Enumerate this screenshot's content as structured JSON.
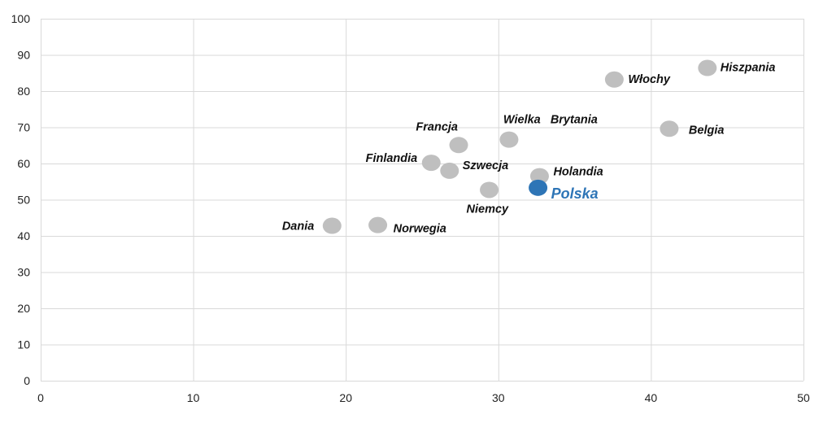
{
  "chart_data": {
    "type": "scatter",
    "title": "",
    "xlabel": "",
    "ylabel": "",
    "xlim": [
      0,
      50
    ],
    "ylim": [
      0,
      100
    ],
    "x_ticks": [
      0,
      10,
      20,
      30,
      40,
      50
    ],
    "y_ticks": [
      0,
      10,
      20,
      30,
      40,
      50,
      60,
      70,
      80,
      90,
      100
    ],
    "grid": true,
    "legend": "none",
    "colors": {
      "default": "#bfbfbf",
      "highlight": "#2e75b6",
      "highlight_label": "#2e75b6"
    },
    "points": [
      {
        "label": "Dania",
        "x": 19.1,
        "y": 42.8,
        "highlight": false
      },
      {
        "label": "Norwegia",
        "x": 22.1,
        "y": 43.0,
        "highlight": false
      },
      {
        "label": "Finlandia",
        "x": 25.6,
        "y": 60.2,
        "highlight": false
      },
      {
        "label": "Szwecja",
        "x": 26.8,
        "y": 58.0,
        "highlight": false
      },
      {
        "label": "Francja",
        "x": 27.4,
        "y": 65.1,
        "highlight": false
      },
      {
        "label": "Niemcy",
        "x": 29.4,
        "y": 52.7,
        "highlight": false
      },
      {
        "label": "Wielka   Brytania",
        "x": 30.7,
        "y": 66.6,
        "highlight": false
      },
      {
        "label": "Holandia",
        "x": 32.7,
        "y": 56.5,
        "highlight": false
      },
      {
        "label": "Polska",
        "x": 32.6,
        "y": 53.3,
        "highlight": true
      },
      {
        "label": "Włochy",
        "x": 37.6,
        "y": 83.2,
        "highlight": false
      },
      {
        "label": "Belgia",
        "x": 41.2,
        "y": 69.6,
        "highlight": false
      },
      {
        "label": "Hiszpania",
        "x": 43.7,
        "y": 86.4,
        "highlight": false
      }
    ]
  }
}
